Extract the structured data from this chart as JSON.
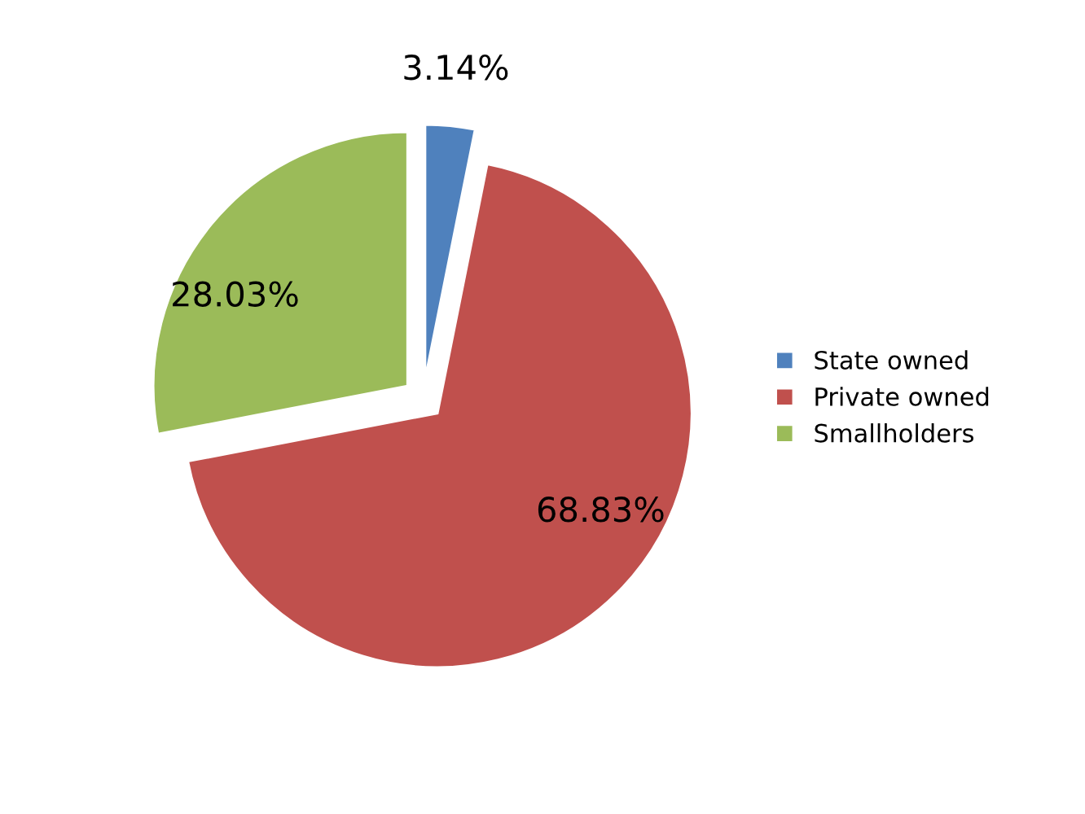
{
  "chart_data": {
    "type": "pie",
    "categories": [
      "State owned",
      "Private owned",
      "Smallholders"
    ],
    "values": [
      3.14,
      68.83,
      28.03
    ],
    "value_labels": [
      "3.14%",
      "68.83%",
      "28.03%"
    ],
    "colors": [
      "#4f81bd",
      "#c0504d",
      "#9bbb59"
    ],
    "legend": "right"
  }
}
